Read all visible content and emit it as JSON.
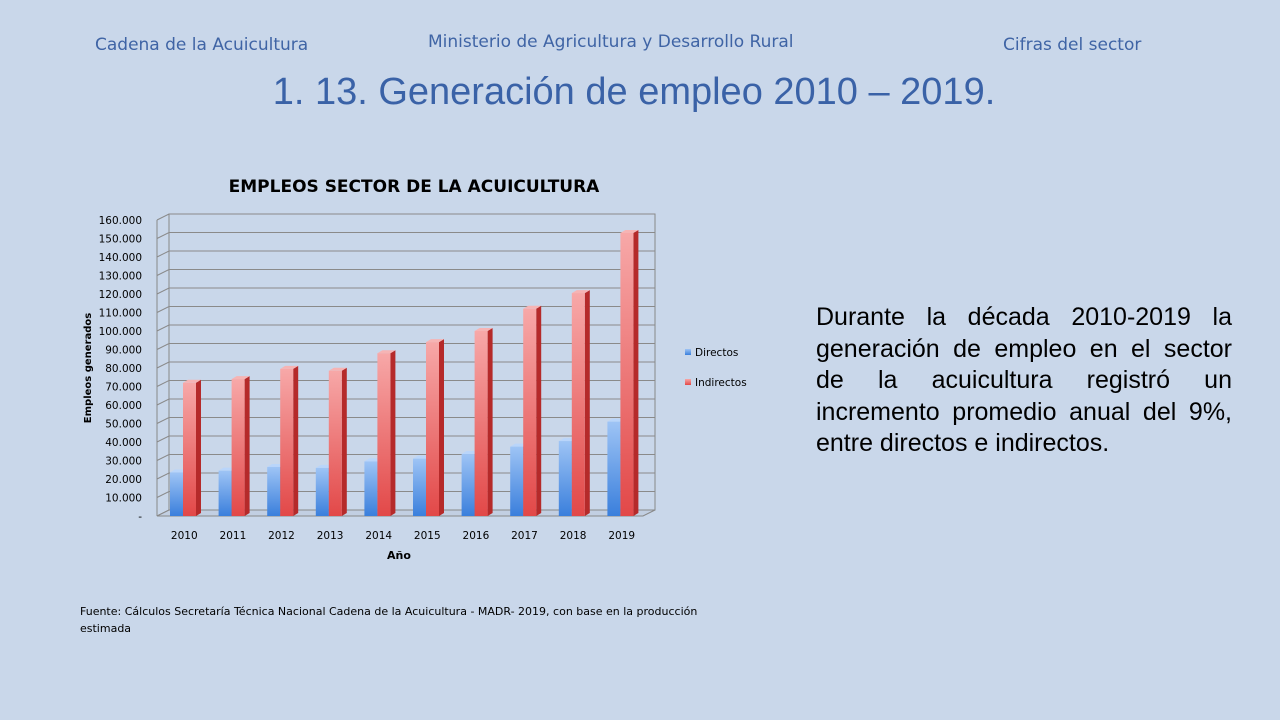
{
  "header": {
    "left": "Cadena de la Acuicultura",
    "center": "Ministerio de Agricultura y Desarrollo Rural",
    "right": "Cifras del sector"
  },
  "slide_title": "1. 13. Generación de empleo 2010 – 2019.",
  "description": "Durante la década 2010-2019 la generación de empleo en el sector de la acuicultura registró un incremento promedio anual del 9%, entre directos e indirectos.",
  "source_note": "Fuente: Cálculos Secretaría Técnica Nacional Cadena de la Acuicultura - MADR- 2019, con base en la producción estimada",
  "colors": {
    "background": "#c9d7ea",
    "accent_blue": "#3f64a5",
    "directos": "#4a8be0",
    "indirectos": "#e06060"
  },
  "chart_data": {
    "type": "bar",
    "title": "EMPLEOS SECTOR DE LA ACUICULTURA",
    "xlabel": "Año",
    "ylabel": "Empleos generados",
    "categories": [
      "2010",
      "2011",
      "2012",
      "2013",
      "2014",
      "2015",
      "2016",
      "2017",
      "2018",
      "2019"
    ],
    "series": [
      {
        "name": "Directos",
        "values": [
          23500,
          24500,
          26500,
          26000,
          29500,
          31000,
          33500,
          37500,
          40500,
          51000
        ]
      },
      {
        "name": "Indirectos",
        "values": [
          72000,
          74000,
          79500,
          78500,
          88000,
          94000,
          100000,
          112000,
          120500,
          153000
        ]
      }
    ],
    "ylim": [
      0,
      160000
    ],
    "yticks": [
      "-",
      "10.000",
      "20.000",
      "30.000",
      "40.000",
      "50.000",
      "60.000",
      "70.000",
      "80.000",
      "90.000",
      "100.000",
      "110.000",
      "120.000",
      "130.000",
      "140.000",
      "150.000",
      "160.000"
    ],
    "grid": true,
    "legend": "right"
  }
}
